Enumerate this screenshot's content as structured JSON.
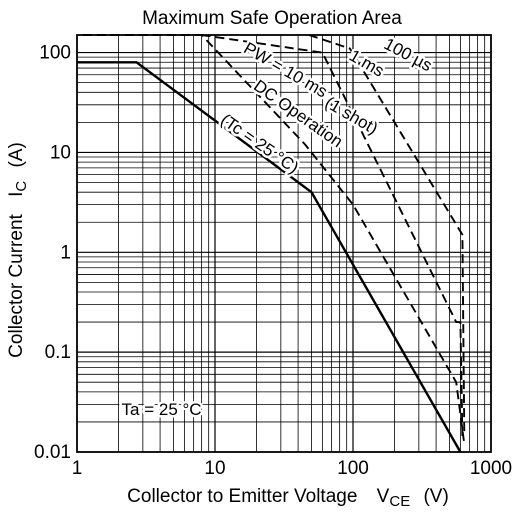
{
  "chart_data": {
    "type": "line",
    "title": "Maximum Safe Operation Area",
    "xlabel": "Collector to Emitter Voltage",
    "xlabel_symbol": "V",
    "xlabel_subscript": "CE",
    "xlabel_unit": "(V)",
    "ylabel": "Collector Current",
    "ylabel_symbol": "I",
    "ylabel_subscript": "C",
    "ylabel_unit": "(A)",
    "x_scale": "log",
    "y_scale": "log",
    "xlim": [
      1,
      1000
    ],
    "ylim": [
      0.01,
      150
    ],
    "grid": true,
    "x_ticks": [
      {
        "value": 1,
        "label": "1"
      },
      {
        "value": 10,
        "label": "10"
      },
      {
        "value": 100,
        "label": "100"
      },
      {
        "value": 1000,
        "label": "1000"
      }
    ],
    "y_ticks": [
      {
        "value": 0.01,
        "label": "0.01"
      },
      {
        "value": 0.1,
        "label": "0.1"
      },
      {
        "value": 1,
        "label": "1"
      },
      {
        "value": 10,
        "label": "10"
      },
      {
        "value": 100,
        "label": "100"
      }
    ],
    "series": [
      {
        "style": "solid",
        "points": [
          [
            1,
            80
          ],
          [
            2.7,
            80
          ],
          [
            50,
            4
          ],
          [
            600,
            0.01
          ]
        ]
      },
      {
        "style": "dashed",
        "points": [
          [
            1.1,
            150
          ],
          [
            8,
            150
          ],
          [
            45,
            12
          ],
          [
            100,
            3
          ],
          [
            560,
            0.05
          ],
          [
            640,
            0.012
          ]
        ]
      },
      {
        "style": "dashed",
        "points": [
          [
            8,
            150
          ],
          [
            60,
            100
          ],
          [
            560,
            0.2
          ],
          [
            600,
            0.2
          ],
          [
            620,
            0.014
          ]
        ]
      },
      {
        "style": "dashed",
        "points": [
          [
            48,
            150
          ],
          [
            95,
            110
          ],
          [
            620,
            1.5
          ],
          [
            640,
            0.015
          ]
        ]
      }
    ],
    "annotations": [
      {
        "text": "100 µs",
        "x": 240,
        "y": 85,
        "rotate": 28
      },
      {
        "text": "1 ms",
        "x": 120,
        "y": 70,
        "rotate": 30
      },
      {
        "text": "PW = 10 ms",
        "x": 31,
        "y": 60,
        "rotate": 30
      },
      {
        "text": "(1 shot)",
        "x": 93,
        "y": 21,
        "rotate": 30
      },
      {
        "text": "DC Operation",
        "x": 38,
        "y": 22,
        "rotate": 35
      },
      {
        "text": "(Tc = 25 °C)",
        "x": 20,
        "y": 11,
        "rotate": 35
      },
      {
        "text": "Ta = 25 °C",
        "x": 4.1,
        "y": 0.0235,
        "rotate": 0
      }
    ]
  }
}
